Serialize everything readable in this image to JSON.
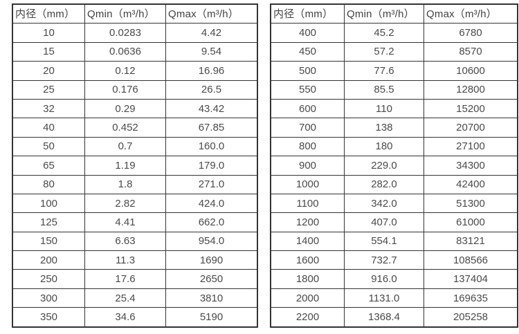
{
  "colors": {
    "background": "#ffffff",
    "border": "#333333",
    "text": "#4a4a4a",
    "header_text": "#424242"
  },
  "tables": [
    {
      "name": "small-diameter-flow-table",
      "headers": [
        "内径（mm）",
        "Qmin（m³/h）",
        "Qmax（m³/h）"
      ],
      "rows": [
        [
          "10",
          "0.0283",
          "4.42"
        ],
        [
          "15",
          "0.0636",
          "9.54"
        ],
        [
          "20",
          "0.12",
          "16.96"
        ],
        [
          "25",
          "0.176",
          "26.5"
        ],
        [
          "32",
          "0.29",
          "43.42"
        ],
        [
          "40",
          "0.452",
          "67.85"
        ],
        [
          "50",
          "0.7",
          "160.0"
        ],
        [
          "65",
          "1.19",
          "179.0"
        ],
        [
          "80",
          "1.8",
          "271.0"
        ],
        [
          "100",
          "2.82",
          "424.0"
        ],
        [
          "125",
          "4.41",
          "662.0"
        ],
        [
          "150",
          "6.63",
          "954.0"
        ],
        [
          "200",
          "11.3",
          "1690"
        ],
        [
          "250",
          "17.6",
          "2650"
        ],
        [
          "300",
          "25.4",
          "3810"
        ],
        [
          "350",
          "34.6",
          "5190"
        ]
      ]
    },
    {
      "name": "large-diameter-flow-table",
      "headers": [
        "内径（mm）",
        "Qmin（m³/h）",
        "Qmax（m³/h）"
      ],
      "rows": [
        [
          "400",
          "45.2",
          "6780"
        ],
        [
          "450",
          "57.2",
          "8570"
        ],
        [
          "500",
          "77.6",
          "10600"
        ],
        [
          "550",
          "85.5",
          "12800"
        ],
        [
          "600",
          "110",
          "15200"
        ],
        [
          "700",
          "138",
          "20700"
        ],
        [
          "800",
          "180",
          "27100"
        ],
        [
          "900",
          "229.0",
          "34300"
        ],
        [
          "1000",
          "282.0",
          "42400"
        ],
        [
          "1100",
          "342.0",
          "51300"
        ],
        [
          "1200",
          "407.0",
          "61000"
        ],
        [
          "1400",
          "554.1",
          "83121"
        ],
        [
          "1600",
          "732.7",
          "108566"
        ],
        [
          "1800",
          "916.0",
          "137404"
        ],
        [
          "2000",
          "1131.0",
          "169635"
        ],
        [
          "2200",
          "1368.4",
          "205258"
        ]
      ]
    }
  ]
}
